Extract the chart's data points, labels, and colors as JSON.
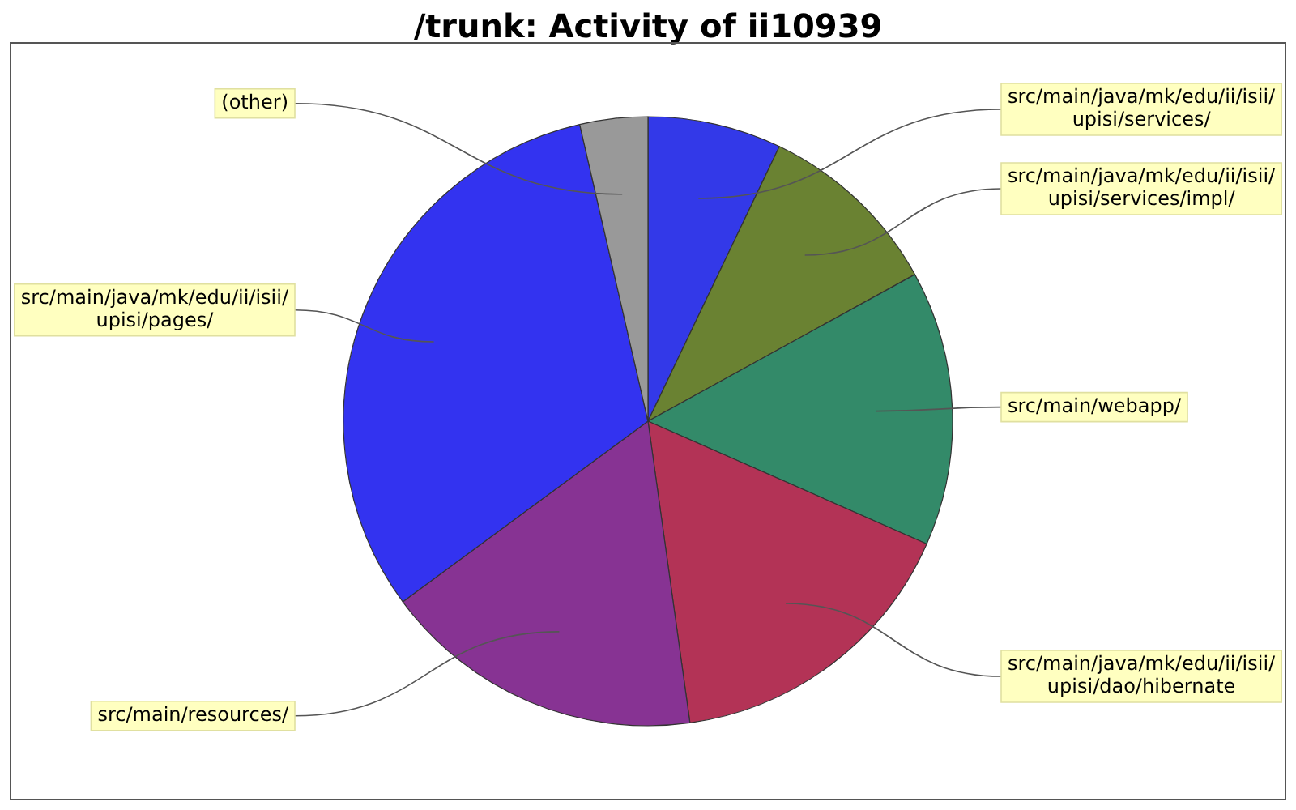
{
  "chart_data": {
    "type": "pie",
    "title": "/trunk: Activity of ii10939",
    "categories": [
      "src/main/java/mk/edu/ii/isii/upisi/services/",
      "src/main/java/mk/edu/ii/isii/upisi/services/impl/",
      "src/main/webapp/",
      "src/main/java/mk/edu/ii/isii/upisi/dao/hibernate",
      "src/main/resources/",
      "src/main/java/mk/edu/ii/isii/upisi/pages/",
      "(other)"
    ],
    "values": [
      7.1,
      9.9,
      14.6,
      16.2,
      17.1,
      31.5,
      3.6
    ],
    "colors": [
      "#3339e8",
      "#6a8232",
      "#338a69",
      "#b33356",
      "#873393",
      "#3333f0",
      "#999999"
    ],
    "legend": false
  }
}
